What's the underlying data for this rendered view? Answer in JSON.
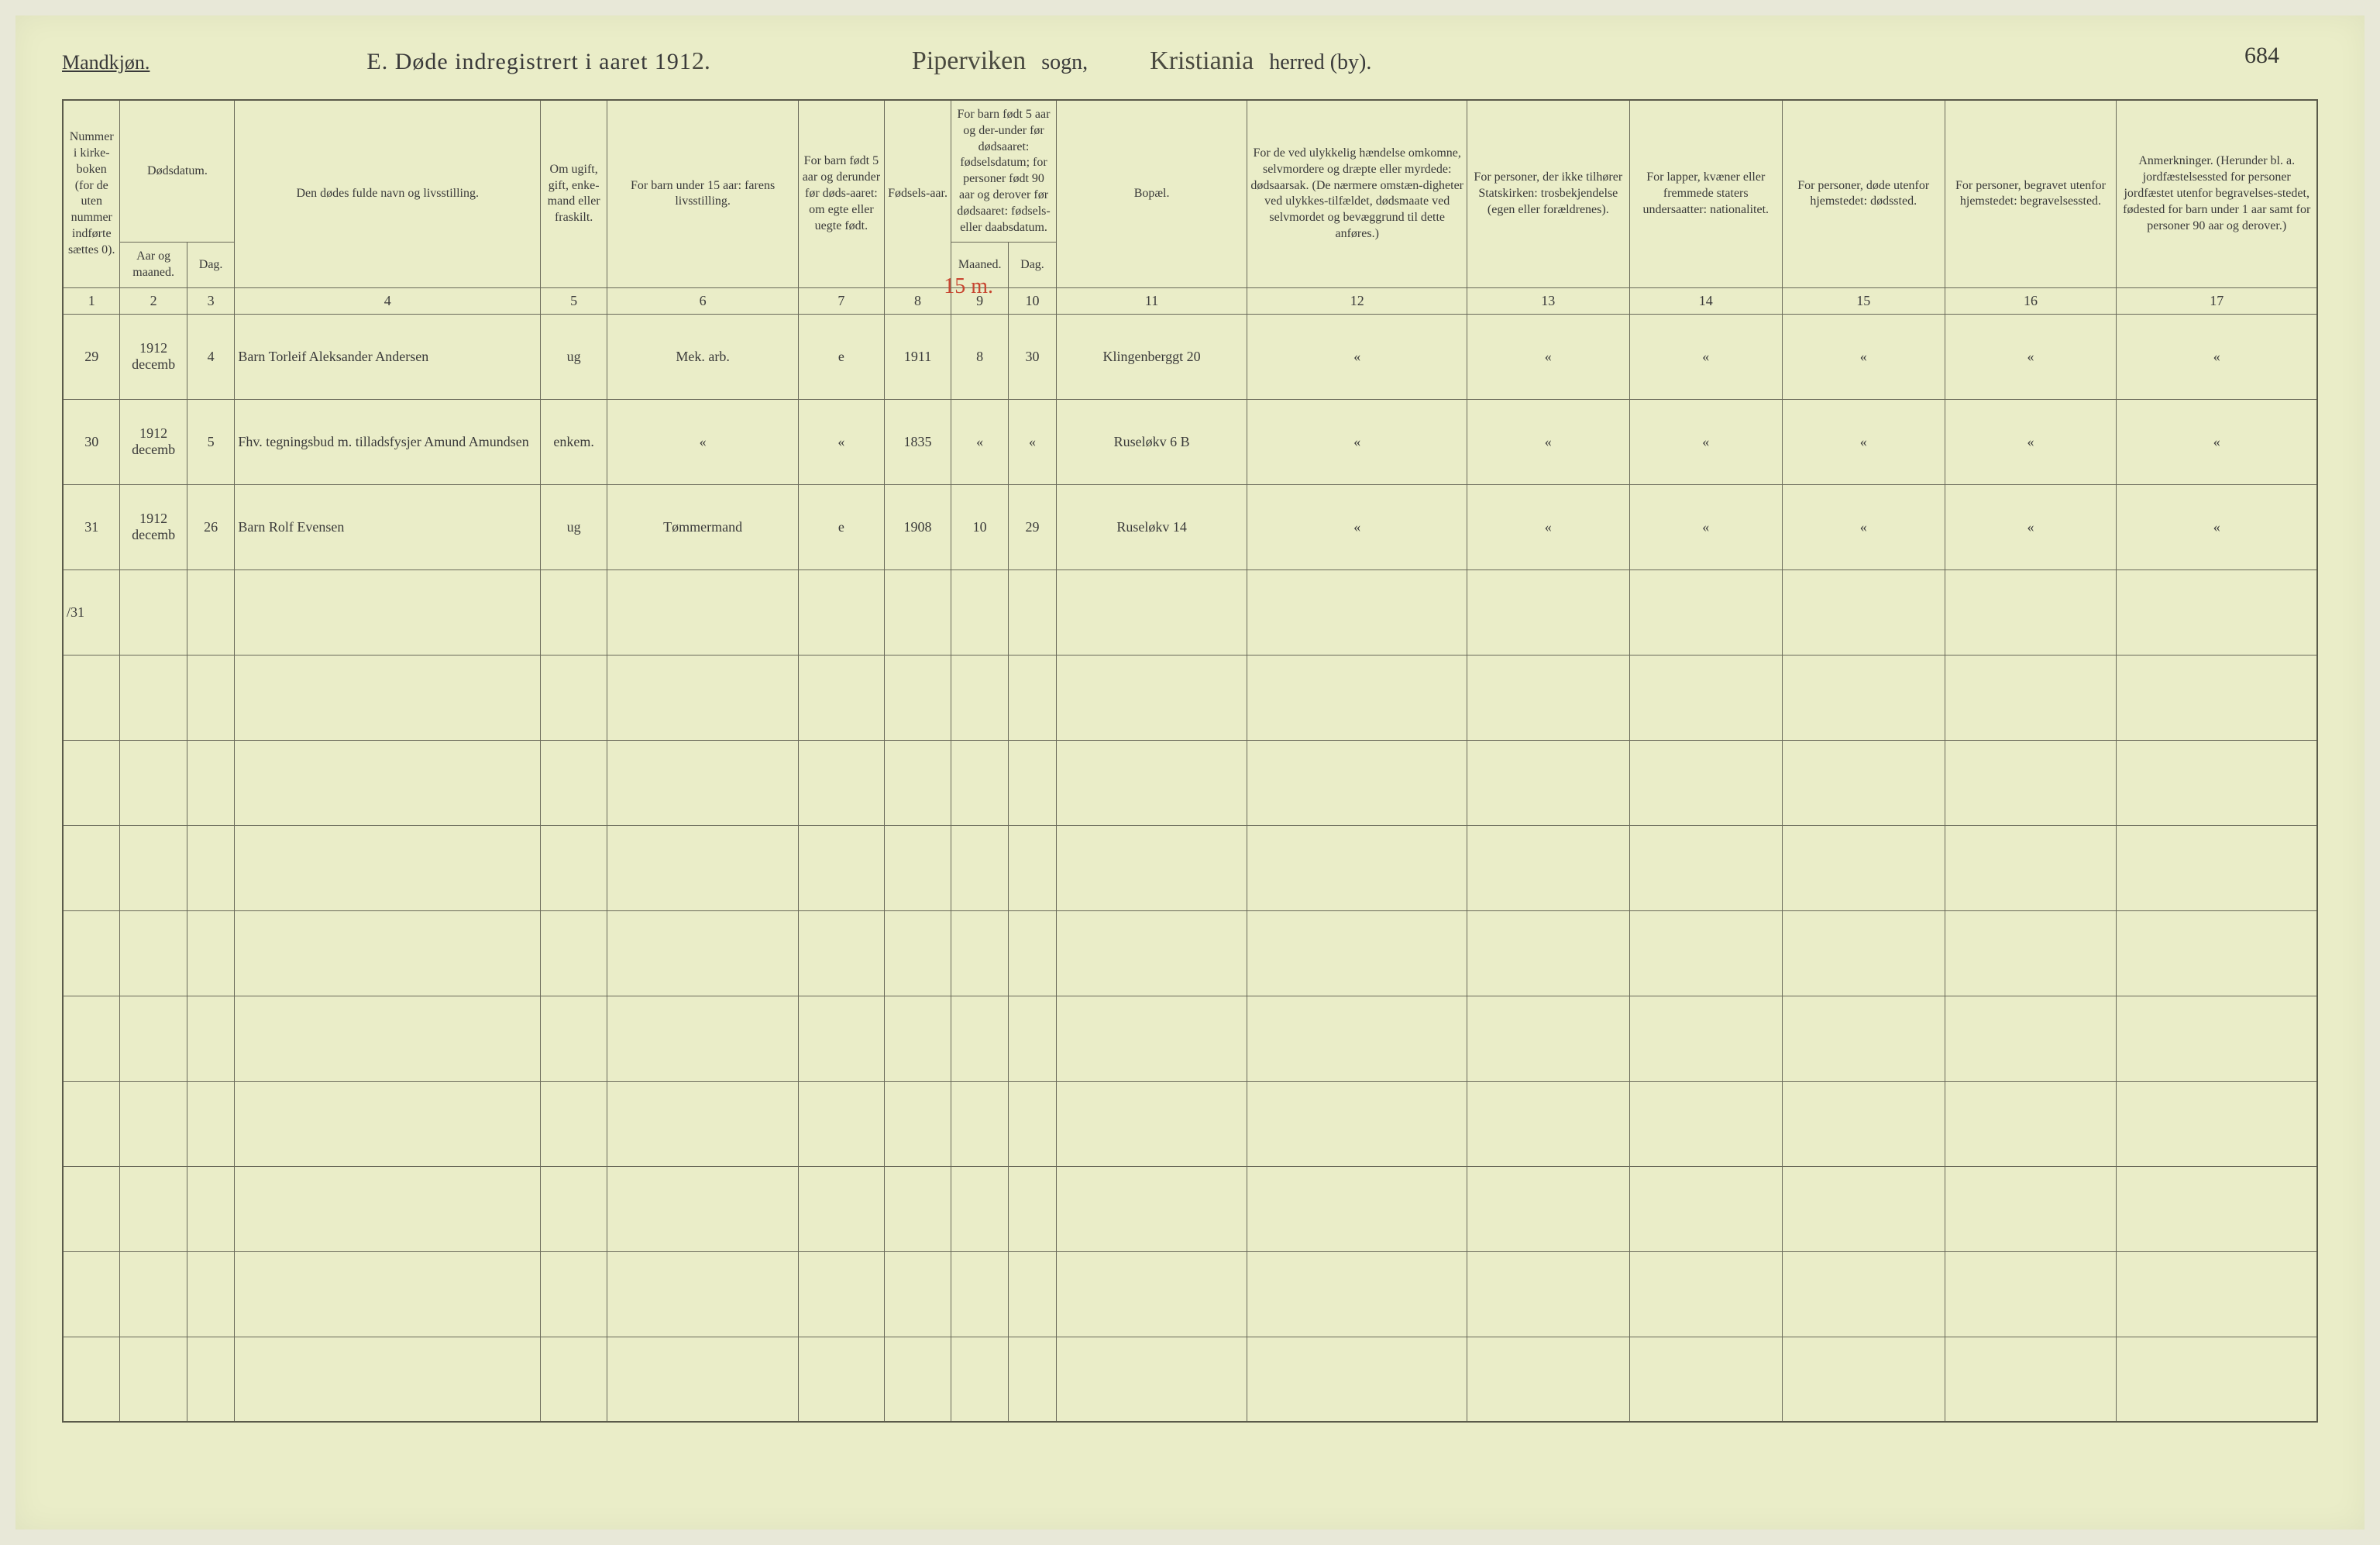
{
  "page_number": "684",
  "header": {
    "mandkjon": "Mandkjøn.",
    "title_prefix": "E.  Døde indregistrert i aaret 191",
    "year_suffix": "2.",
    "sogn_value": "Piperviken",
    "sogn_label": "sogn,",
    "herred_value": "Kristiania",
    "herred_label": "herred (by)."
  },
  "columns": {
    "c1": "Nummer i kirke-boken (for de uten nummer indførte sættes 0).",
    "c2a": "Dødsdatum.",
    "c2b": "Aar og maaned.",
    "c3": "Dag.",
    "c4": "Den dødes fulde navn og livsstilling.",
    "c5": "Om ugift, gift, enke-mand eller fraskilt.",
    "c6": "For barn under 15 aar: farens livsstilling.",
    "c7": "For barn født 5 aar og derunder før døds-aaret: om egte eller uegte født.",
    "c8": "Fødsels-aar.",
    "c9a": "For barn født 5 aar og der-under før dødsaaret: fødselsdatum; for personer født 90 aar og derover før dødsaaret: fødsels- eller daabsdatum.",
    "c9b": "Maaned.",
    "c10": "Dag.",
    "c11": "Bopæl.",
    "c12": "For de ved ulykkelig hændelse omkomne, selvmordere og dræpte eller myrdede: dødsaarsak. (De nærmere omstæn-digheter ved ulykkes-tilfældet, dødsmaate ved selvmordet og bevæggrund til dette anføres.)",
    "c13": "For personer, der ikke tilhører Statskirken: trosbekjendelse (egen eller forældrenes).",
    "c14": "For lapper, kvæner eller fremmede staters undersaatter: nationalitet.",
    "c15": "For personer, døde utenfor hjemstedet: dødssted.",
    "c16": "For personer, begravet utenfor hjemstedet: begravelsessted.",
    "c17": "Anmerkninger. (Herunder bl. a. jordfæstelsessted for personer jordfæstet utenfor begravelses-stedet, fødested for barn under 1 aar samt for personer 90 aar og derover.)"
  },
  "colnums": [
    "1",
    "2",
    "3",
    "4",
    "5",
    "6",
    "7",
    "8",
    "9",
    "10",
    "11",
    "12",
    "13",
    "14",
    "15",
    "16",
    "17"
  ],
  "overwrite_89": "15 m.",
  "rows": [
    {
      "num": "29",
      "aar_mnd": "1912 decemb",
      "dag": "4",
      "navn": "Barn Torleif Aleksander Andersen",
      "status": "ug",
      "faren": "Mek. arb.",
      "egte": "e",
      "faar": "1911",
      "fmnd": "8",
      "fdag": "30",
      "bopael": "Klingenberggt 20",
      "c12": "«",
      "c13": "«",
      "c14": "«",
      "c15": "«",
      "c16": "«",
      "c17": "«"
    },
    {
      "num": "30",
      "aar_mnd": "1912 decemb",
      "dag": "5",
      "navn": "Fhv. tegningsbud m. tilladsfysjer Amund Amundsen",
      "status": "enkem.",
      "faren": "«",
      "egte": "«",
      "faar": "1835",
      "fmnd": "«",
      "fdag": "«",
      "bopael": "Ruseløkv 6 B",
      "c12": "«",
      "c13": "«",
      "c14": "«",
      "c15": "«",
      "c16": "«",
      "c17": "«"
    },
    {
      "num": "31",
      "aar_mnd": "1912 decemb",
      "dag": "26",
      "navn": "Barn Rolf Evensen",
      "status": "ug",
      "faren": "Tømmermand",
      "egte": "e",
      "faar": "1908",
      "fmnd": "10",
      "fdag": "29",
      "bopael": "Ruseløkv 14",
      "c12": "«",
      "c13": "«",
      "c14": "«",
      "c15": "«",
      "c16": "«",
      "c17": "«"
    }
  ],
  "strike_mark": "31",
  "col_widths": {
    "c1": 60,
    "c2": 70,
    "c3": 50,
    "c4": 320,
    "c5": 70,
    "c6": 200,
    "c7": 90,
    "c8": 70,
    "c9": 60,
    "c10": 50,
    "c11": 200,
    "c12": 230,
    "c13": 170,
    "c14": 160,
    "c15": 170,
    "c16": 180,
    "c17": 210
  },
  "colors": {
    "paper": "#eaedc8",
    "rule": "#6a6a5a",
    "ink": "#3a3a35",
    "red": "#c84530"
  },
  "empty_row_count": 9
}
